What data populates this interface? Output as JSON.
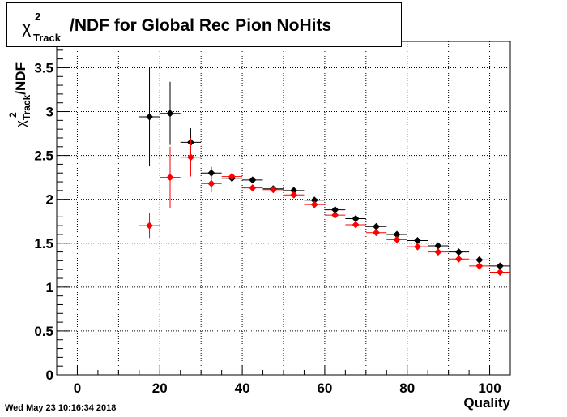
{
  "chart_data": {
    "type": "scatter",
    "title_prefix": "χ",
    "title_sup": "2",
    "title_sub": "Track",
    "title_suffix": "/NDF for Global Rec Pion NoHits",
    "xlabel": "Quality",
    "ylabel_prefix": "χ",
    "ylabel_sup": "2",
    "ylabel_sub": "Track",
    "ylabel_suffix": "/NDF",
    "xlim": [
      -5,
      105
    ],
    "ylim": [
      0,
      3.8
    ],
    "x_ticks": [
      0,
      20,
      40,
      60,
      80,
      100
    ],
    "x_tick_labels": [
      "0",
      "20",
      "40",
      "60",
      "80",
      "100"
    ],
    "y_ticks": [
      0,
      0.5,
      1,
      1.5,
      2,
      2.5,
      3,
      3.5
    ],
    "y_tick_labels": [
      "0",
      "0.5",
      "1",
      "1.5",
      "2",
      "2.5",
      "3",
      "3.5"
    ],
    "grid": true,
    "series": [
      {
        "color": "#000000",
        "points": [
          {
            "x": 17.5,
            "y": 2.94,
            "err": 0.56
          },
          {
            "x": 22.5,
            "y": 2.98,
            "err": 0.36
          },
          {
            "x": 27.5,
            "y": 2.65,
            "err": 0.16
          },
          {
            "x": 32.5,
            "y": 2.3,
            "err": 0.07
          },
          {
            "x": 37.5,
            "y": 2.24,
            "err": 0.04
          },
          {
            "x": 42.5,
            "y": 2.22,
            "err": 0.03
          },
          {
            "x": 47.5,
            "y": 2.12,
            "err": 0.02
          },
          {
            "x": 52.5,
            "y": 2.1,
            "err": 0.02
          },
          {
            "x": 57.5,
            "y": 1.99,
            "err": 0.02
          },
          {
            "x": 62.5,
            "y": 1.88,
            "err": 0.02
          },
          {
            "x": 67.5,
            "y": 1.78,
            "err": 0.02
          },
          {
            "x": 72.5,
            "y": 1.69,
            "err": 0.02
          },
          {
            "x": 77.5,
            "y": 1.6,
            "err": 0.02
          },
          {
            "x": 82.5,
            "y": 1.53,
            "err": 0.02
          },
          {
            "x": 87.5,
            "y": 1.47,
            "err": 0.02
          },
          {
            "x": 92.5,
            "y": 1.4,
            "err": 0.02
          },
          {
            "x": 97.5,
            "y": 1.31,
            "err": 0.02
          },
          {
            "x": 102.5,
            "y": 1.24,
            "err": 0.02
          }
        ]
      },
      {
        "color": "#ff0000",
        "points": [
          {
            "x": 17.5,
            "y": 1.7,
            "err": 0.14
          },
          {
            "x": 22.5,
            "y": 2.25,
            "err": 0.35
          },
          {
            "x": 27.5,
            "y": 2.48,
            "err": 0.22
          },
          {
            "x": 32.5,
            "y": 2.18,
            "err": 0.1
          },
          {
            "x": 37.5,
            "y": 2.26,
            "err": 0.05
          },
          {
            "x": 42.5,
            "y": 2.13,
            "err": 0.03
          },
          {
            "x": 47.5,
            "y": 2.11,
            "err": 0.02
          },
          {
            "x": 52.5,
            "y": 2.05,
            "err": 0.02
          },
          {
            "x": 57.5,
            "y": 1.94,
            "err": 0.02
          },
          {
            "x": 62.5,
            "y": 1.82,
            "err": 0.02
          },
          {
            "x": 67.5,
            "y": 1.71,
            "err": 0.02
          },
          {
            "x": 72.5,
            "y": 1.62,
            "err": 0.02
          },
          {
            "x": 77.5,
            "y": 1.54,
            "err": 0.02
          },
          {
            "x": 82.5,
            "y": 1.46,
            "err": 0.02
          },
          {
            "x": 87.5,
            "y": 1.4,
            "err": 0.02
          },
          {
            "x": 92.5,
            "y": 1.32,
            "err": 0.02
          },
          {
            "x": 97.5,
            "y": 1.24,
            "err": 0.02
          },
          {
            "x": 102.5,
            "y": 1.17,
            "err": 0.02
          }
        ]
      }
    ]
  },
  "timestamp": "Wed May 23 10:16:34 2018"
}
